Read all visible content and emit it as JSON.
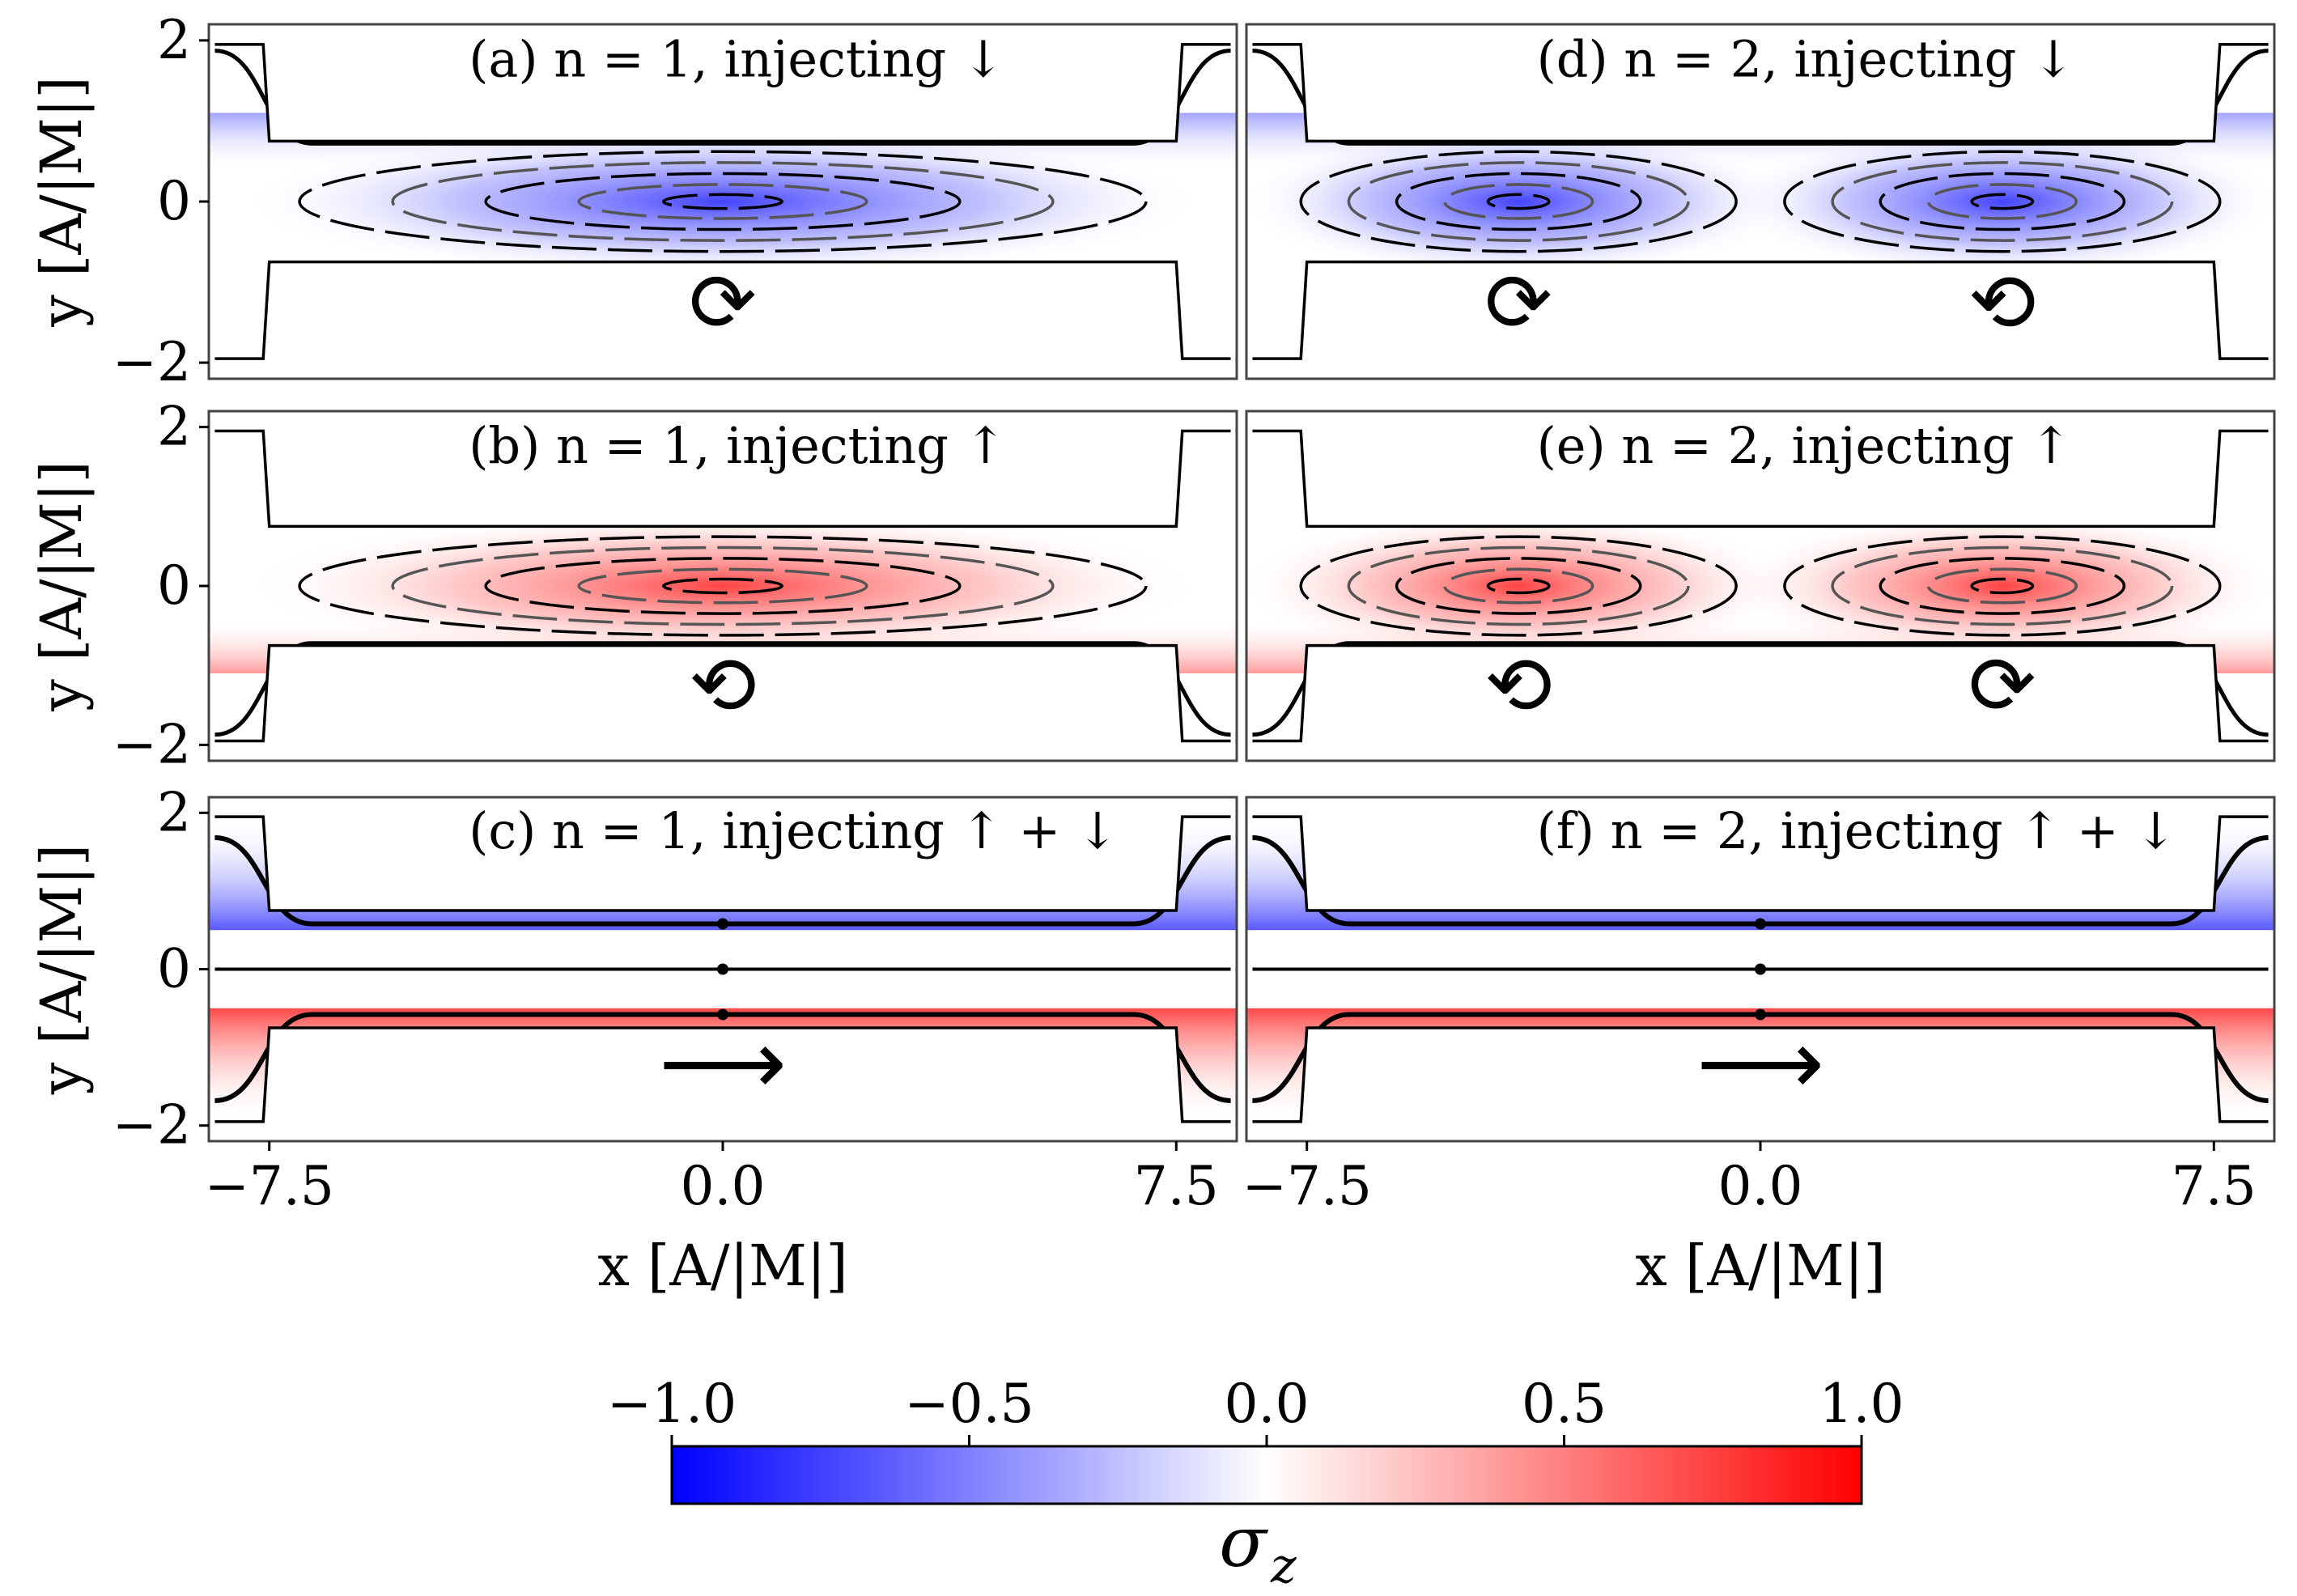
{
  "chart_data": {
    "type": "heatmap",
    "quantity": "σ_z",
    "x_range": [
      -8.5,
      8.5
    ],
    "y_range": [
      -2.2,
      2.2
    ],
    "x_ticks": [
      "−7.5",
      "0.0",
      "7.5"
    ],
    "y_ticks": [
      "2",
      "0",
      "−2"
    ],
    "xlabel": "x [A/|M|]",
    "ylabel": "y [A/|M|]",
    "colorbar": {
      "label": "σ",
      "label_subscript": "z",
      "range": [
        -1.0,
        1.0
      ],
      "ticks": [
        "−1.0",
        "−0.5",
        "0.0",
        "0.5",
        "1.0"
      ],
      "colors": [
        "#0000ff",
        "#ffffff",
        "#ff0000"
      ]
    },
    "panels": [
      {
        "id": "a",
        "label": "(a) n = 1, injecting ↓",
        "n": 1,
        "injection": "down",
        "dominant_sigma_z": -1.0,
        "vortex_centers_x": [
          0.0
        ],
        "rotation": [
          "clockwise"
        ],
        "arrow_glyph": "⟳"
      },
      {
        "id": "b",
        "label": "(b) n = 1, injecting ↑",
        "n": 1,
        "injection": "up",
        "dominant_sigma_z": 1.0,
        "vortex_centers_x": [
          0.0
        ],
        "rotation": [
          "counterclockwise"
        ],
        "arrow_glyph": "⟲"
      },
      {
        "id": "c",
        "label": "(c) n = 1, injecting ↑ + ↓",
        "n": 1,
        "injection": "up+down",
        "dominant_sigma_z": 0.0,
        "upper_channel_sigma_z": -1.0,
        "lower_channel_sigma_z": 1.0,
        "arrow_glyph": "⟶"
      },
      {
        "id": "d",
        "label": "(d) n = 2, injecting ↓",
        "n": 2,
        "injection": "down",
        "dominant_sigma_z": -1.0,
        "vortex_centers_x": [
          -4.0,
          4.0
        ],
        "rotation": [
          "clockwise",
          "counterclockwise"
        ],
        "arrow_glyph": "⟳ ⟲"
      },
      {
        "id": "e",
        "label": "(e) n = 2, injecting ↑",
        "n": 2,
        "injection": "up",
        "dominant_sigma_z": 1.0,
        "vortex_centers_x": [
          -4.0,
          4.0
        ],
        "rotation": [
          "counterclockwise",
          "clockwise"
        ],
        "arrow_glyph": "⟲ ⟳"
      },
      {
        "id": "f",
        "label": "(f) n = 2, injecting ↑ + ↓",
        "n": 2,
        "injection": "up+down",
        "dominant_sigma_z": 0.0,
        "upper_channel_sigma_z": -1.0,
        "lower_channel_sigma_z": 1.0,
        "arrow_glyph": "⟶"
      }
    ]
  }
}
